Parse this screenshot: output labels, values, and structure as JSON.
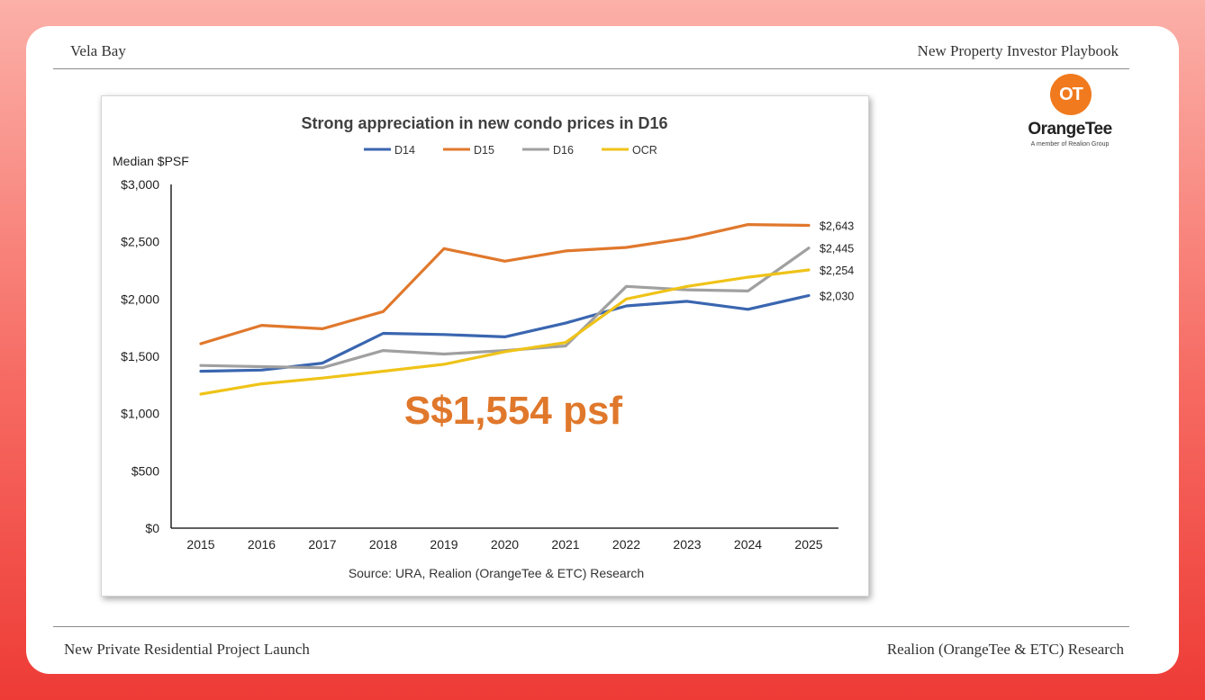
{
  "header": {
    "left": "Vela Bay",
    "right": "New Property Investor Playbook"
  },
  "footer": {
    "left": "New Private Residential Project Launch",
    "right": "Realion (OrangeTee & ETC) Research"
  },
  "logo": {
    "mark": "OT",
    "name": "OrangeTee",
    "tagline": "A member of Realion Group",
    "color": "#f07a1d"
  },
  "chart_data": {
    "type": "line",
    "title": "Strong appreciation in new condo prices in D16",
    "ylabel": "Median $PSF",
    "xlabel": "",
    "source": "Source: URA, Realion (OrangeTee & ETC) Research",
    "callout": "S$1,554 psf",
    "callout_color": "#e0782c",
    "ylim": [
      0,
      3000
    ],
    "yticks": [
      0,
      500,
      1000,
      1500,
      2000,
      2500,
      3000
    ],
    "ytick_labels": [
      "$0",
      "$500",
      "$1,000",
      "$1,500",
      "$2,000",
      "$2,500",
      "$3,000"
    ],
    "categories": [
      "2015",
      "2016",
      "2017",
      "2018",
      "2019",
      "2020",
      "2021",
      "2022",
      "2023",
      "2024",
      "2025"
    ],
    "legend_position": "top-center",
    "grid": false,
    "series": [
      {
        "name": "D14",
        "color": "#3a66b0",
        "values": [
          1370,
          1380,
          1440,
          1700,
          1690,
          1670,
          1790,
          1940,
          1980,
          1910,
          2030
        ],
        "end_label": "$2,030"
      },
      {
        "name": "D15",
        "color": "#e0782c",
        "values": [
          1610,
          1770,
          1740,
          1890,
          2440,
          2330,
          2420,
          2450,
          2530,
          2650,
          2643
        ],
        "end_label": "$2,643"
      },
      {
        "name": "D16",
        "color": "#a0a0a0",
        "values": [
          1420,
          1410,
          1400,
          1550,
          1520,
          1550,
          1590,
          2110,
          2080,
          2070,
          2445
        ],
        "end_label": "$2,445"
      },
      {
        "name": "OCR",
        "color": "#efc318",
        "values": [
          1170,
          1260,
          1310,
          1370,
          1430,
          1540,
          1620,
          2000,
          2110,
          2190,
          2254
        ],
        "end_label": "$2,254"
      }
    ]
  }
}
